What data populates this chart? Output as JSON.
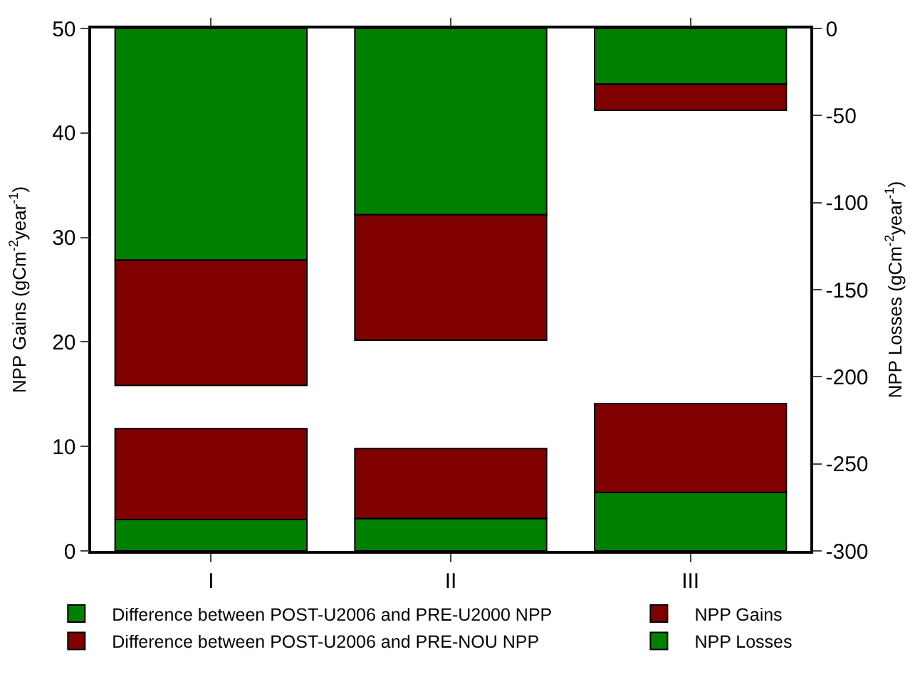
{
  "chart_data": {
    "type": "bar",
    "stacked": true,
    "categories": [
      "I",
      "II",
      "III"
    ],
    "ylabel": "NPP Gains (gCm$^{-2}$year$^{-1}$)",
    "y2label": "NPP Losses (gCm$^{-2}$year$^{-1}$)",
    "ylim": [
      0,
      50
    ],
    "yticks": [
      0,
      10,
      20,
      30,
      40,
      50
    ],
    "y2lim": [
      -300,
      0
    ],
    "y2ticks": [
      -300,
      -250,
      -200,
      -150,
      -100,
      -50,
      0
    ],
    "series": [
      {
        "name": "Difference between POST-U2006 and PRE-U2000 NPP",
        "color": "#008000",
        "values": [
          3.0,
          3.1,
          5.6
        ]
      },
      {
        "name": "Difference between POST-U2006 and PRE-NOU NPP",
        "color": "#800000",
        "values": [
          8.7,
          6.7,
          8.5
        ]
      },
      {
        "name": "NPP Losses",
        "color": "#008000",
        "axis": "y2",
        "values": [
          -133,
          -107,
          -32
        ]
      },
      {
        "name": "NPP Gains",
        "color": "#800000",
        "axis": "y2",
        "values": [
          -72,
          -72,
          -15
        ]
      }
    ],
    "legend": "bottom"
  }
}
